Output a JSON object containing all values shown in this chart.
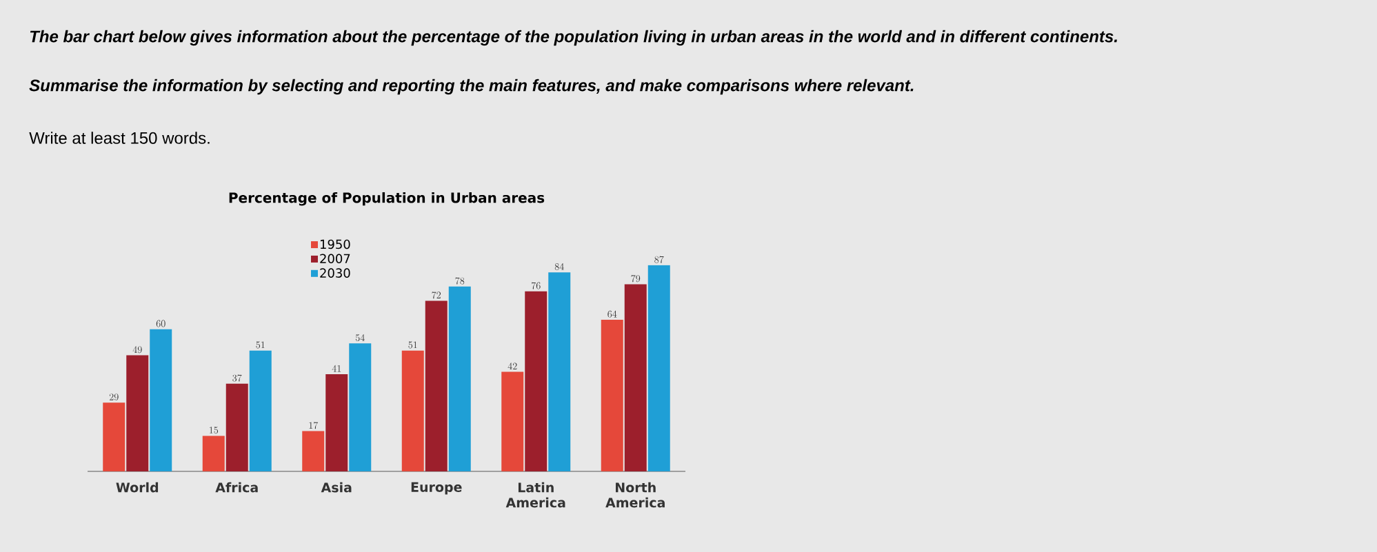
{
  "chart_data": {
    "type": "bar",
    "title": "Percentage of Population in Urban areas",
    "annotations": [
      "The bar chart below gives information about the percentage of the population living in urban areas in the world and in different continents.",
      "Summarise the information by selecting and reporting the main features, and make comparisons where relevant.",
      "Write at least 150 words."
    ],
    "categories": [
      "World",
      "Africa",
      "Asia",
      "Europe",
      "Latin America",
      "North America"
    ],
    "series": [
      {
        "name": "1950",
        "color": "#e5483a",
        "values": [
          29,
          15,
          17,
          51,
          42,
          64
        ]
      },
      {
        "name": "2007",
        "color": "#9c1f2c",
        "values": [
          49,
          37,
          41,
          72,
          76,
          79
        ]
      },
      {
        "name": "2030",
        "color": "#1f9fd6",
        "values": [
          60,
          51,
          54,
          78,
          84,
          87
        ]
      }
    ],
    "data_labels": true,
    "legend": "top"
  }
}
